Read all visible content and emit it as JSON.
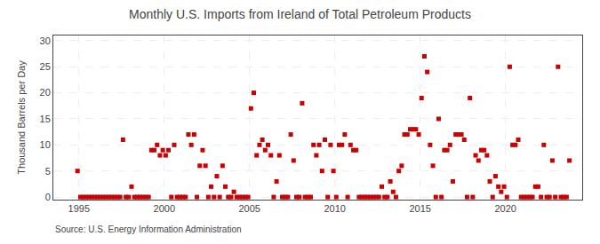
{
  "chart_data": {
    "type": "scatter",
    "title": "Monthly U.S. Imports from Ireland of Total Petroleum Products",
    "ylabel": "Thousand Barrels per Day",
    "annotations": [
      "Source: U.S. Energy Information Administration"
    ],
    "color": "#cc0000",
    "marker": "square",
    "grid": true,
    "xlim": [
      1993.5,
      2024.5
    ],
    "ylim": [
      -0.5,
      31
    ],
    "xticks": [
      1995,
      2000,
      2005,
      2010,
      2015,
      2020
    ],
    "yticks": [
      0,
      5,
      10,
      15,
      20,
      25,
      30
    ],
    "x": [
      1994.917,
      1997.583,
      1998.083,
      1999.25,
      1999.417,
      1999.583,
      1999.75,
      1999.917,
      2000.083,
      2000.25,
      2000.583,
      2001.417,
      2001.583,
      2001.75,
      2002.083,
      2002.25,
      2002.417,
      2002.75,
      2003.083,
      2003.417,
      2003.583,
      2004.083,
      2005.083,
      2005.25,
      2005.417,
      2005.583,
      2005.75,
      2005.917,
      2006.083,
      2006.25,
      2006.583,
      2006.75,
      2007.417,
      2007.583,
      2008.083,
      2008.75,
      2008.917,
      2009.083,
      2009.25,
      2009.417,
      2009.75,
      2009.917,
      2010.25,
      2010.417,
      2010.583,
      2010.917,
      2011.083,
      2011.25,
      2012.75,
      2013.25,
      2013.417,
      2013.75,
      2013.917,
      2014.083,
      2014.25,
      2014.417,
      2014.583,
      2014.75,
      2014.917,
      2015.083,
      2015.25,
      2015.417,
      2015.583,
      2015.75,
      2016.083,
      2016.417,
      2016.583,
      2016.75,
      2016.917,
      2017.083,
      2017.25,
      2017.417,
      2017.583,
      2017.917,
      2018.25,
      2018.417,
      2018.583,
      2018.75,
      2018.917,
      2019.083,
      2019.417,
      2019.583,
      2019.75,
      2019.917,
      2020.25,
      2020.417,
      2020.583,
      2020.75,
      2021.75,
      2021.917,
      2022.25,
      2022.75,
      2023.083,
      2023.75,
      1995.083,
      1995.25,
      1995.417,
      1995.583,
      1995.75,
      1995.917,
      1996.083,
      1996.25,
      1996.417,
      1996.583,
      1996.75,
      1996.917,
      1997.083,
      1997.25,
      1997.417,
      1997.75,
      1997.917,
      1998.25,
      1998.417,
      1998.583,
      1998.75,
      1998.917,
      1999.083,
      2000.417,
      2000.75,
      2000.917,
      2001.083,
      2001.25,
      2001.917,
      2002.583,
      2002.917,
      2003.25,
      2003.75,
      2003.917,
      2004.25,
      2004.417,
      2004.583,
      2004.75,
      2004.917,
      2006.417,
      2006.917,
      2007.083,
      2007.25,
      2007.75,
      2007.917,
      2008.25,
      2008.417,
      2008.583,
      2009.583,
      2010.083,
      2010.75,
      2011.417,
      2011.583,
      2011.75,
      2011.917,
      2012.083,
      2012.25,
      2012.417,
      2012.583,
      2012.917,
      2013.083,
      2013.583,
      2015.917,
      2016.25,
      2017.75,
      2018.083,
      2019.25,
      2020.083,
      2020.917,
      2021.083,
      2021.25,
      2021.417,
      2021.583,
      2022.083,
      2022.417,
      2022.583,
      2022.917,
      2023.25,
      2023.417,
      2023.583
    ],
    "values": [
      5,
      11,
      2,
      9,
      9,
      10,
      8,
      9,
      8,
      9,
      10,
      12,
      10,
      12,
      6,
      9,
      6,
      2,
      4,
      6,
      2,
      1,
      17,
      20,
      8,
      10,
      11,
      9,
      10,
      8,
      3,
      8,
      12,
      7,
      18,
      10,
      8,
      10,
      5,
      11,
      10,
      5,
      10,
      10,
      12,
      10,
      9,
      9,
      2,
      3,
      1,
      5,
      6,
      12,
      12,
      13,
      13,
      13,
      12,
      19,
      27,
      24,
      10,
      6,
      15,
      9,
      9,
      10,
      3,
      12,
      12,
      12,
      11,
      19,
      8,
      7,
      9,
      9,
      8,
      3,
      4,
      2,
      1,
      2,
      25,
      10,
      10,
      11,
      2,
      2,
      10,
      7,
      25,
      7,
      0,
      0,
      0,
      0,
      0,
      0,
      0,
      0,
      0,
      0,
      0,
      0,
      0,
      0,
      0,
      0,
      0,
      0,
      0,
      0,
      0,
      0,
      0,
      0,
      0,
      0,
      0,
      0,
      0,
      0,
      0,
      0,
      0,
      0,
      0,
      0,
      0,
      0,
      0,
      0,
      0,
      0,
      0,
      0,
      0,
      0,
      0,
      0,
      0,
      0,
      0,
      0,
      0,
      0,
      0,
      0,
      0,
      0,
      0,
      0,
      0,
      0,
      0,
      0,
      0,
      0,
      0,
      0,
      0,
      0,
      0,
      0,
      0,
      0,
      0,
      0,
      0,
      0,
      0,
      0
    ]
  }
}
